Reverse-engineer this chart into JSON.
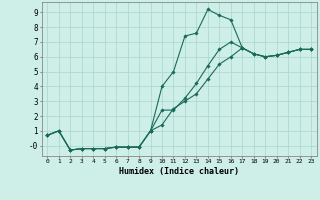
{
  "background_color": "#ceeee8",
  "grid_color": "#aad4cc",
  "line_color": "#1a6a5a",
  "xlabel": "Humidex (Indice chaleur)",
  "xlim": [
    -0.5,
    23.5
  ],
  "ylim": [
    -0.7,
    9.7
  ],
  "xtick_vals": [
    0,
    1,
    2,
    3,
    4,
    5,
    6,
    7,
    8,
    9,
    10,
    11,
    12,
    13,
    14,
    15,
    16,
    17,
    18,
    19,
    20,
    21,
    22,
    23
  ],
  "ytick_vals": [
    0,
    1,
    2,
    3,
    4,
    5,
    6,
    7,
    8,
    9
  ],
  "ytick_labels": [
    "-0",
    "1",
    "2",
    "3",
    "4",
    "5",
    "6",
    "7",
    "8",
    "9"
  ],
  "line1_x": [
    0,
    1,
    2,
    3,
    4,
    5,
    6,
    7,
    8,
    9,
    10,
    11,
    12,
    13,
    14,
    15,
    16,
    17,
    18,
    19,
    20,
    21,
    22,
    23
  ],
  "line1_y": [
    0.7,
    1.0,
    -0.3,
    -0.2,
    -0.2,
    -0.2,
    -0.1,
    -0.1,
    -0.1,
    1.0,
    4.0,
    5.0,
    7.4,
    7.6,
    9.2,
    8.8,
    8.5,
    6.6,
    6.2,
    6.0,
    6.1,
    6.3,
    6.5,
    6.5
  ],
  "line2_x": [
    0,
    1,
    2,
    3,
    4,
    5,
    6,
    7,
    8,
    9,
    10,
    11,
    12,
    13,
    14,
    15,
    16,
    17,
    18,
    19,
    20,
    21,
    22,
    23
  ],
  "line2_y": [
    0.7,
    1.0,
    -0.3,
    -0.2,
    -0.2,
    -0.2,
    -0.1,
    -0.1,
    -0.1,
    1.0,
    2.4,
    2.4,
    3.2,
    4.2,
    5.4,
    6.5,
    7.0,
    6.6,
    6.2,
    6.0,
    6.1,
    6.3,
    6.5,
    6.5
  ],
  "line3_x": [
    0,
    1,
    2,
    3,
    4,
    5,
    6,
    7,
    8,
    9,
    10,
    11,
    12,
    13,
    14,
    15,
    16,
    17,
    18,
    19,
    20,
    21,
    22,
    23
  ],
  "line3_y": [
    0.7,
    1.0,
    -0.3,
    -0.2,
    -0.2,
    -0.2,
    -0.1,
    -0.1,
    -0.1,
    1.0,
    1.4,
    2.5,
    3.0,
    3.5,
    4.5,
    5.5,
    6.0,
    6.6,
    6.2,
    6.0,
    6.1,
    6.3,
    6.5,
    6.5
  ]
}
